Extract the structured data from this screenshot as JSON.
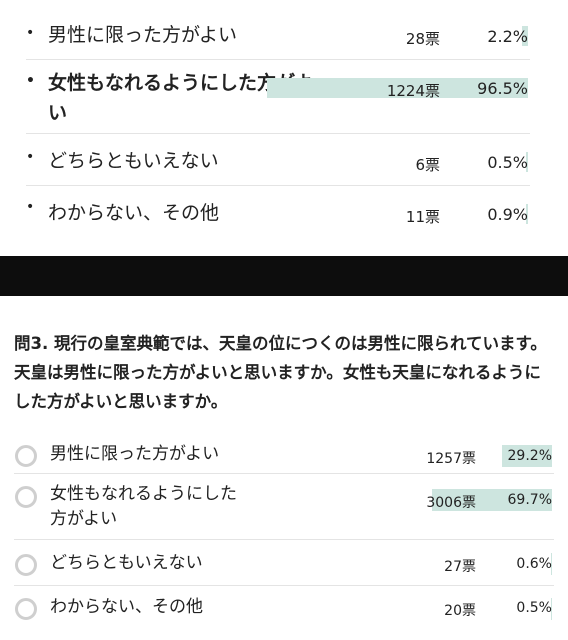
{
  "colors": {
    "bar": "#cde5df",
    "band": "#0d0d0d",
    "radio_border": "#cfcfcf"
  },
  "top_results": [
    {
      "bullet": "•",
      "label": "男性に限った方がよい",
      "votes": "28票",
      "percent": "2.2%",
      "share": 2.2
    },
    {
      "bullet": "•",
      "label": "女性もなれるようにした方がよ\nい",
      "votes": "1224票",
      "percent": "96.5%",
      "share": 96.5
    },
    {
      "bullet": "•",
      "label": "どちらともいえない",
      "votes": "6票",
      "percent": "0.5%",
      "share": 0.5
    },
    {
      "bullet": "•",
      "label": "わからない、その他",
      "votes": "11票",
      "percent": "0.9%",
      "share": 0.9
    }
  ],
  "question": "問3. 現行の皇室典範では、天皇の位につくのは男性に限られています。天皇は男性に限った方がよいと思いますか。女性も天皇になれるようにした方がよいと思いますか。",
  "options": [
    {
      "label": "男性に限った方がよい",
      "votes": "1257票",
      "percent": "29.2%",
      "share": 29.2
    },
    {
      "label": "女性もなれるようにした\n方がよい",
      "votes": "3006票",
      "percent": "69.7%",
      "share": 69.7
    },
    {
      "label": "どちらともいえない",
      "votes": "27票",
      "percent": "0.6%",
      "share": 0.6
    },
    {
      "label": "わからない、その他",
      "votes": "20票",
      "percent": "0.5%",
      "share": 0.5
    }
  ]
}
